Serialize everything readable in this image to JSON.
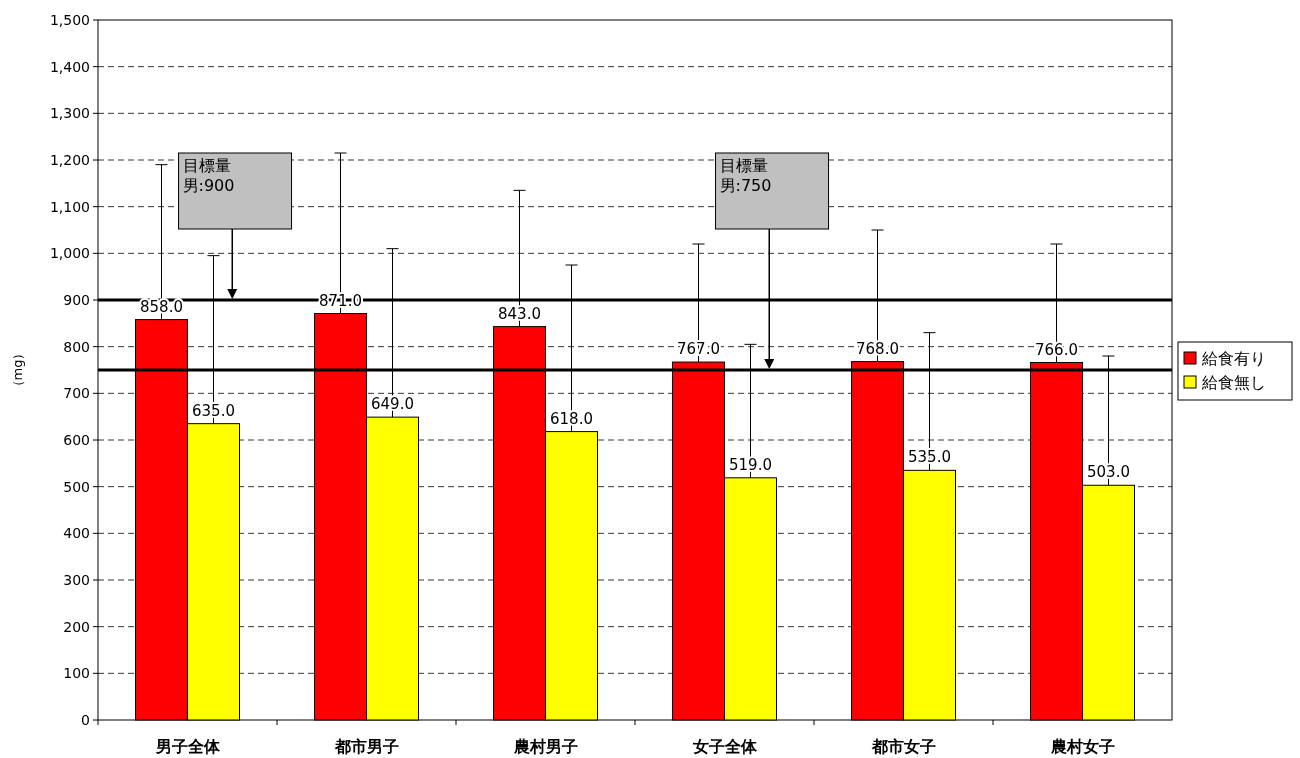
{
  "chart_data": {
    "type": "bar",
    "ylabel": "（mg）",
    "categories": [
      "男子全体",
      "都市男子",
      "農村男子",
      "女子全体",
      "都市女子",
      "農村女子"
    ],
    "series": [
      {
        "name": "給食有り",
        "color": "#ff0000",
        "values": [
          858,
          871,
          843,
          767,
          768,
          766
        ],
        "value_labels": [
          "858.0",
          "871.0",
          "843.0",
          "767.0",
          "768.0",
          "766.0"
        ],
        "errors": [
          [
            858,
            1190
          ],
          [
            871,
            1215
          ],
          [
            843,
            1135
          ],
          [
            767,
            1020
          ],
          [
            768,
            1050
          ],
          [
            766,
            1020
          ]
        ]
      },
      {
        "name": "給食無し",
        "color": "#ffff00",
        "values": [
          635,
          649,
          618,
          519,
          535,
          503
        ],
        "value_labels": [
          "635.0",
          "649.0",
          "618.0",
          "519.0",
          "535.0",
          "503.0"
        ],
        "errors": [
          [
            635,
            995
          ],
          [
            649,
            1010
          ],
          [
            618,
            975
          ],
          [
            519,
            805
          ],
          [
            535,
            830
          ],
          [
            503,
            780
          ]
        ]
      }
    ],
    "ylim": [
      0,
      1500
    ],
    "yticks": [
      0,
      100,
      200,
      300,
      400,
      500,
      600,
      700,
      800,
      900,
      {
        "value": 1000,
        "label": "1,000"
      },
      {
        "value": 1100,
        "label": "1,100"
      },
      {
        "value": 1200,
        "label": "1,200"
      },
      {
        "value": 1300,
        "label": "1,300"
      },
      {
        "value": 1400,
        "label": "1,400"
      },
      {
        "value": 1500,
        "label": "1,500"
      }
    ],
    "grid": "y",
    "legend": "right",
    "ref_lines": [
      {
        "axis": "y",
        "value": 900,
        "color": "#000000"
      },
      {
        "axis": "y",
        "value": 750,
        "color": "#000000"
      }
    ],
    "annotations": [
      "目標量男:900",
      "目標量男:750"
    ]
  }
}
